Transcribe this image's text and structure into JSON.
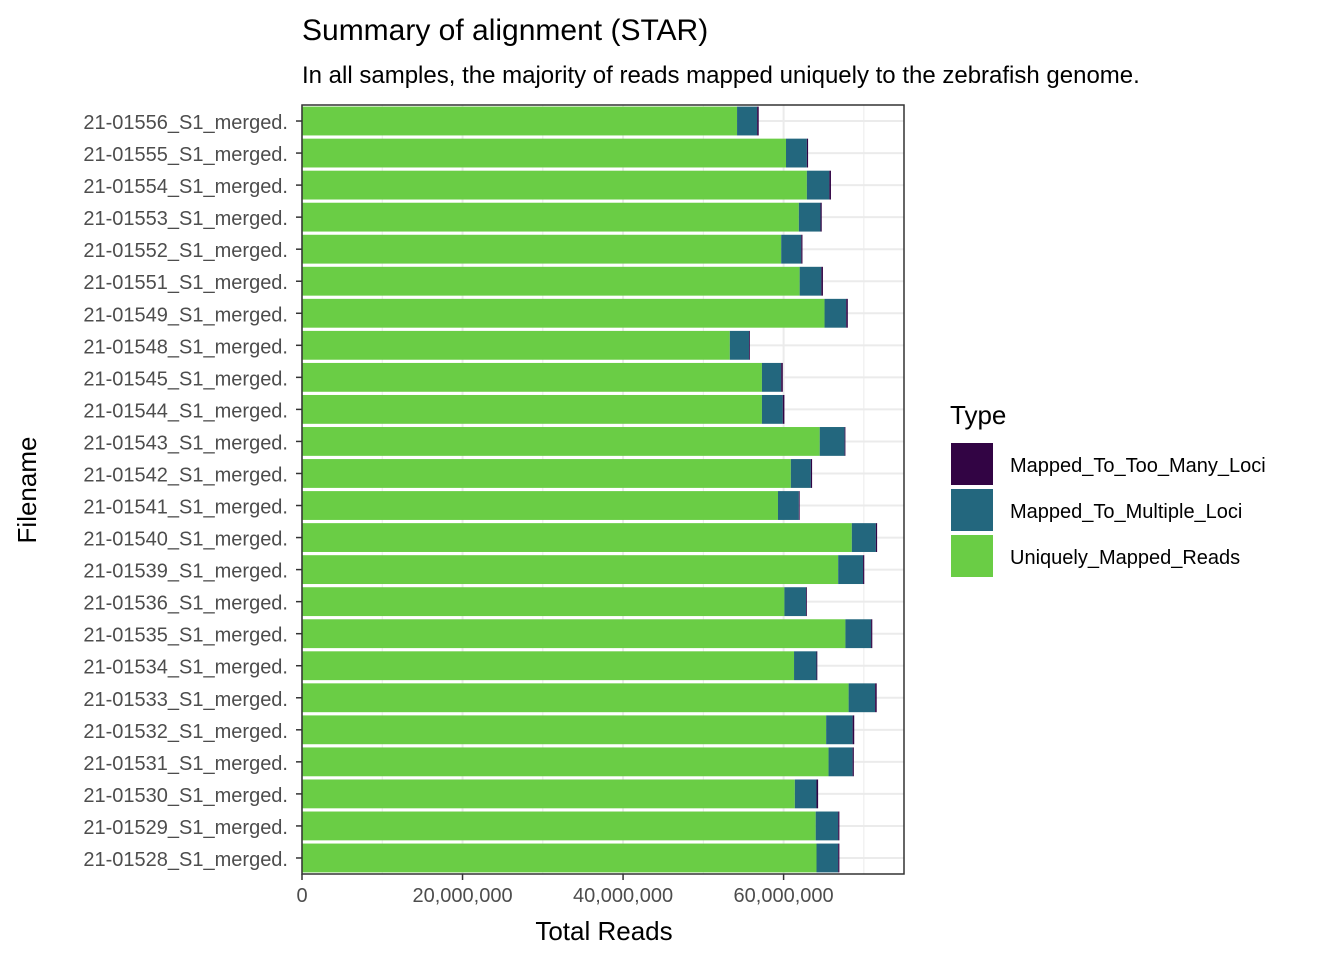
{
  "chart_data": {
    "type": "bar",
    "orientation": "horizontal",
    "stacked": true,
    "title": "Summary of alignment (STAR)",
    "subtitle": "In all samples, the majority of reads mapped uniquely to the zebrafish genome.",
    "xlabel": "Total Reads",
    "ylabel": "Filename",
    "xlim": [
      0,
      75000000
    ],
    "x_ticks": [
      0,
      20000000,
      40000000,
      60000000
    ],
    "x_tick_labels": [
      "0",
      "20,000,000",
      "40,000,000",
      "60,000,000"
    ],
    "grid": true,
    "legend_title": "Type",
    "legend_position": "right",
    "categories": [
      "21-01556_S1_merged.",
      "21-01555_S1_merged.",
      "21-01554_S1_merged.",
      "21-01553_S1_merged.",
      "21-01552_S1_merged.",
      "21-01551_S1_merged.",
      "21-01549_S1_merged.",
      "21-01548_S1_merged.",
      "21-01545_S1_merged.",
      "21-01544_S1_merged.",
      "21-01543_S1_merged.",
      "21-01542_S1_merged.",
      "21-01541_S1_merged.",
      "21-01540_S1_merged.",
      "21-01539_S1_merged.",
      "21-01536_S1_merged.",
      "21-01535_S1_merged.",
      "21-01534_S1_merged.",
      "21-01533_S1_merged.",
      "21-01532_S1_merged.",
      "21-01531_S1_merged.",
      "21-01530_S1_merged.",
      "21-01529_S1_merged.",
      "21-01528_S1_merged."
    ],
    "series": [
      {
        "name": "Uniquely_Mapped_Reads",
        "color": "#6ACD45",
        "values": [
          54200000,
          60300000,
          62900000,
          61900000,
          59700000,
          62000000,
          65100000,
          53300000,
          57300000,
          57300000,
          64500000,
          60900000,
          59300000,
          68500000,
          66800000,
          60100000,
          67700000,
          61300000,
          68100000,
          65300000,
          65600000,
          61400000,
          64000000,
          64100000
        ]
      },
      {
        "name": "Mapped_To_Multiple_Loci",
        "color": "#23677E",
        "values": [
          2500000,
          2600000,
          2800000,
          2700000,
          2500000,
          2700000,
          2700000,
          2400000,
          2400000,
          2600000,
          3100000,
          2500000,
          2600000,
          3000000,
          3100000,
          2700000,
          3200000,
          2800000,
          3300000,
          3300000,
          3000000,
          2700000,
          2800000,
          2700000
        ]
      },
      {
        "name": "Mapped_To_Too_Many_Loci",
        "color": "#320444",
        "values": [
          200000,
          150000,
          200000,
          150000,
          150000,
          200000,
          200000,
          100000,
          200000,
          200000,
          100000,
          150000,
          100000,
          150000,
          150000,
          100000,
          150000,
          100000,
          200000,
          200000,
          150000,
          200000,
          150000,
          150000
        ]
      }
    ],
    "legend_order": [
      "Mapped_To_Too_Many_Loci",
      "Mapped_To_Multiple_Loci",
      "Uniquely_Mapped_Reads"
    ]
  }
}
